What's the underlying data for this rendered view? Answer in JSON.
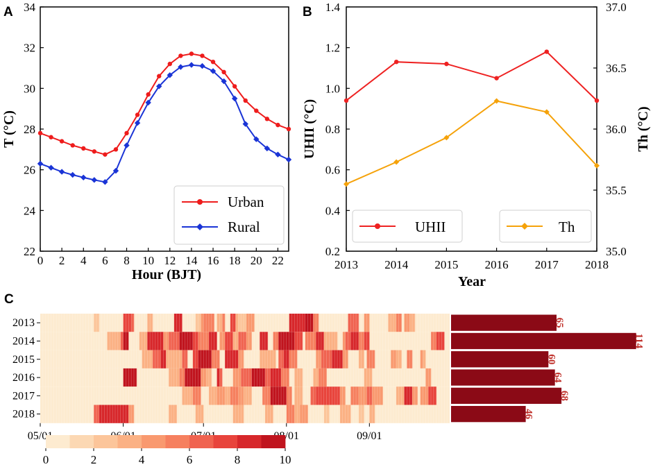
{
  "panels": {
    "a": "A",
    "b": "B",
    "c": "C"
  },
  "colors": {
    "urban": "#ee1c1c",
    "rural": "#1a34d6",
    "uhii": "#ee2222",
    "th": "#f5a20a",
    "bar": "#8b0a16",
    "barlabel": "#c0302a"
  },
  "chart_data": [
    {
      "id": "A",
      "type": "line",
      "xlabel": "Hour (BJT)",
      "ylabel": "T (°C)",
      "xlim": [
        0,
        23
      ],
      "ylim": [
        22,
        34
      ],
      "xticks": [
        0,
        2,
        4,
        6,
        8,
        10,
        12,
        14,
        16,
        18,
        20,
        22
      ],
      "yticks": [
        22,
        24,
        26,
        28,
        30,
        32,
        34
      ],
      "legend_position": "bottom-right",
      "x": [
        0,
        1,
        2,
        3,
        4,
        5,
        6,
        7,
        8,
        9,
        10,
        11,
        12,
        13,
        14,
        15,
        16,
        17,
        18,
        19,
        20,
        21,
        22,
        23
      ],
      "series": [
        {
          "name": "Urban",
          "marker": "circle",
          "values": [
            27.8,
            27.6,
            27.4,
            27.2,
            27.05,
            26.9,
            26.75,
            27.0,
            27.8,
            28.7,
            29.7,
            30.6,
            31.2,
            31.6,
            31.7,
            31.6,
            31.3,
            30.8,
            30.1,
            29.4,
            28.9,
            28.5,
            28.2,
            28.0
          ]
        },
        {
          "name": "Rural",
          "marker": "diamond",
          "values": [
            26.3,
            26.1,
            25.9,
            25.75,
            25.62,
            25.5,
            25.4,
            25.95,
            27.2,
            28.3,
            29.3,
            30.1,
            30.65,
            31.05,
            31.15,
            31.1,
            30.85,
            30.35,
            29.5,
            28.25,
            27.5,
            27.05,
            26.75,
            26.5
          ]
        }
      ]
    },
    {
      "id": "B",
      "type": "line",
      "xlabel": "Year",
      "ylabel": "UHII (°C)",
      "y2label": "Th (°C)",
      "xlim": [
        2013,
        2018
      ],
      "ylim": [
        0.2,
        1.4
      ],
      "y2lim": [
        35.0,
        37.0
      ],
      "xticks": [
        2013,
        2014,
        2015,
        2016,
        2017,
        2018
      ],
      "yticks": [
        "0.2",
        "0.4",
        "0.6",
        "0.8",
        "1.0",
        "1.2",
        "1.4"
      ],
      "y2ticks": [
        "35.0",
        "35.5",
        "36.0",
        "36.5",
        "37.0"
      ],
      "legend_position": "bottom",
      "x": [
        2013,
        2014,
        2015,
        2016,
        2017,
        2018
      ],
      "series": [
        {
          "name": "UHII",
          "axis": "left",
          "marker": "circle",
          "values": [
            0.94,
            1.13,
            1.12,
            1.05,
            1.18,
            0.94
          ]
        },
        {
          "name": "Th",
          "axis": "right",
          "marker": "diamond",
          "values": [
            35.55,
            35.73,
            35.93,
            36.23,
            36.14,
            35.7
          ]
        }
      ]
    },
    {
      "id": "C",
      "type": "heatmap",
      "years": [
        "2013",
        "2014",
        "2015",
        "2016",
        "2017",
        "2018"
      ],
      "date_ticks": [
        "05/01",
        "06/01",
        "07/01",
        "08/01",
        "09/01"
      ],
      "date_tick_days": [
        0,
        31,
        61,
        92,
        123
      ],
      "colorbar_ticks": [
        "0",
        "2",
        "4",
        "6",
        "8",
        "10"
      ],
      "colorbar_range": [
        0,
        10
      ],
      "bar_values": [
        65,
        114,
        60,
        64,
        68,
        46
      ],
      "bar_labels": [
        "65",
        "114",
        "60",
        "64",
        "68",
        "46"
      ],
      "bar_max_display": 115,
      "day_count": 153,
      "heat_events": {
        "2013": [
          [
            20,
            22,
            2
          ],
          [
            31,
            34,
            7
          ],
          [
            34,
            35,
            6
          ],
          [
            40,
            42,
            3
          ],
          [
            50,
            53,
            8
          ],
          [
            58,
            60,
            2
          ],
          [
            60,
            62,
            4
          ],
          [
            61,
            65,
            5
          ],
          [
            66,
            68,
            3
          ],
          [
            68,
            69,
            5
          ],
          [
            71,
            73,
            7
          ],
          [
            73,
            75,
            3
          ],
          [
            74,
            77,
            2
          ],
          [
            77,
            80,
            4
          ],
          [
            93,
            99,
            8
          ],
          [
            99,
            102,
            9
          ],
          [
            102,
            104,
            5
          ],
          [
            115,
            119,
            6
          ],
          [
            121,
            123,
            4
          ],
          [
            130,
            133,
            3
          ],
          [
            133,
            135,
            5
          ],
          [
            136,
            138,
            4
          ],
          [
            138,
            140,
            3
          ]
        ],
        "2014": [
          [
            25,
            30,
            3
          ],
          [
            30,
            31,
            6
          ],
          [
            31,
            33,
            9
          ],
          [
            37,
            40,
            3
          ],
          [
            40,
            46,
            8
          ],
          [
            46,
            48,
            4
          ],
          [
            48,
            52,
            6
          ],
          [
            52,
            57,
            9
          ],
          [
            57,
            59,
            7
          ],
          [
            59,
            63,
            5
          ],
          [
            63,
            66,
            8
          ],
          [
            67,
            69,
            4
          ],
          [
            69,
            72,
            7
          ],
          [
            72,
            74,
            3
          ],
          [
            74,
            77,
            6
          ],
          [
            77,
            79,
            4
          ],
          [
            82,
            85,
            8
          ],
          [
            87,
            89,
            5
          ],
          [
            89,
            95,
            9
          ],
          [
            95,
            98,
            7
          ],
          [
            99,
            103,
            5
          ],
          [
            103,
            106,
            8
          ],
          [
            106,
            111,
            3
          ],
          [
            113,
            114,
            4
          ],
          [
            114,
            116,
            6
          ],
          [
            116,
            119,
            8
          ],
          [
            119,
            121,
            5
          ],
          [
            121,
            123,
            7
          ],
          [
            146,
            148,
            5
          ],
          [
            148,
            151,
            7
          ]
        ],
        "2015": [
          [
            38,
            42,
            3
          ],
          [
            42,
            45,
            6
          ],
          [
            45,
            47,
            8
          ],
          [
            47,
            53,
            3
          ],
          [
            53,
            55,
            6
          ],
          [
            57,
            59,
            7
          ],
          [
            59,
            64,
            9
          ],
          [
            64,
            67,
            5
          ],
          [
            69,
            74,
            8
          ],
          [
            74,
            76,
            4
          ],
          [
            82,
            88,
            3
          ],
          [
            89,
            91,
            6
          ],
          [
            91,
            93,
            8
          ],
          [
            93,
            96,
            5
          ],
          [
            103,
            105,
            4
          ],
          [
            105,
            109,
            6
          ],
          [
            109,
            113,
            8
          ],
          [
            113,
            115,
            4
          ],
          [
            119,
            121,
            3
          ],
          [
            122,
            125,
            5
          ],
          [
            131,
            133,
            4
          ],
          [
            133,
            135,
            3
          ],
          [
            137,
            139,
            5
          ],
          [
            142,
            143,
            4
          ],
          [
            143,
            144,
            3
          ]
        ],
        "2016": [
          [
            31,
            36,
            9
          ],
          [
            48,
            52,
            3
          ],
          [
            52,
            54,
            5
          ],
          [
            54,
            60,
            9
          ],
          [
            60,
            62,
            4
          ],
          [
            62,
            64,
            3
          ],
          [
            66,
            68,
            8
          ],
          [
            67,
            68,
            6
          ],
          [
            72,
            75,
            4
          ],
          [
            75,
            79,
            6
          ],
          [
            79,
            84,
            9
          ],
          [
            84,
            86,
            6
          ],
          [
            86,
            90,
            8
          ],
          [
            90,
            93,
            5
          ],
          [
            95,
            98,
            3
          ],
          [
            102,
            104,
            3
          ],
          [
            104,
            107,
            5
          ],
          [
            121,
            124,
            3
          ],
          [
            144,
            146,
            4
          ]
        ],
        "2017": [
          [
            53,
            57,
            3
          ],
          [
            57,
            60,
            5
          ],
          [
            63,
            66,
            3
          ],
          [
            66,
            69,
            4
          ],
          [
            69,
            71,
            3
          ],
          [
            71,
            74,
            5
          ],
          [
            74,
            76,
            4
          ],
          [
            76,
            79,
            3
          ],
          [
            83,
            86,
            5
          ],
          [
            86,
            92,
            9
          ],
          [
            92,
            94,
            5
          ],
          [
            95,
            98,
            3
          ],
          [
            101,
            103,
            6
          ],
          [
            103,
            112,
            7
          ],
          [
            112,
            114,
            4
          ],
          [
            116,
            119,
            5
          ],
          [
            119,
            122,
            4
          ],
          [
            122,
            124,
            6
          ],
          [
            124,
            128,
            4
          ],
          [
            133,
            136,
            3
          ],
          [
            136,
            139,
            8
          ],
          [
            139,
            141,
            4
          ],
          [
            142,
            145,
            4
          ],
          [
            145,
            148,
            7
          ]
        ],
        "2018": [
          [
            20,
            22,
            6
          ],
          [
            22,
            33,
            8
          ],
          [
            33,
            35,
            4
          ],
          [
            48,
            51,
            3
          ],
          [
            58,
            61,
            3
          ],
          [
            72,
            76,
            3
          ],
          [
            84,
            87,
            3
          ],
          [
            92,
            95,
            5
          ],
          [
            95,
            97,
            3
          ],
          [
            97,
            100,
            4
          ],
          [
            106,
            108,
            2
          ],
          [
            112,
            116,
            3
          ],
          [
            119,
            121,
            2
          ],
          [
            123,
            125,
            3
          ]
        ]
      }
    }
  ]
}
